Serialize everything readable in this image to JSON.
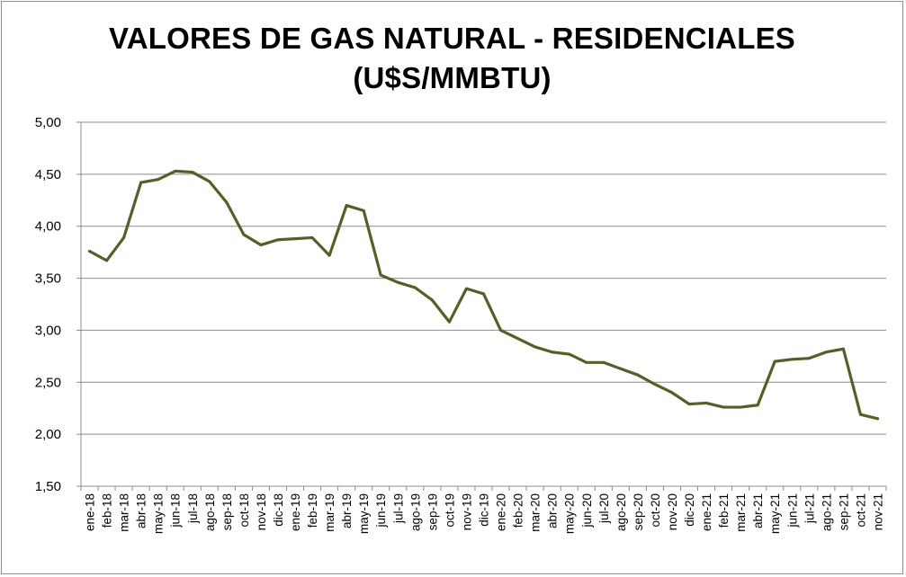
{
  "chart_data": {
    "type": "line",
    "title": "VALORES DE GAS NATURAL - RESIDENCIALES",
    "subtitle": "(U$S/MMBTU)",
    "xlabel": "",
    "ylabel": "",
    "ylim": [
      1.5,
      5.0
    ],
    "yticks": [
      "1,50",
      "2,00",
      "2,50",
      "3,00",
      "3,50",
      "4,00",
      "4,50",
      "5,00"
    ],
    "ytick_values": [
      1.5,
      2.0,
      2.5,
      3.0,
      3.5,
      4.0,
      4.5,
      5.0
    ],
    "grid": true,
    "line_color": "#4f6228",
    "categories": [
      "ene-18",
      "feb-18",
      "mar-18",
      "abr-18",
      "may-18",
      "jun-18",
      "jul-18",
      "ago-18",
      "sep-18",
      "oct-18",
      "nov-18",
      "dic-18",
      "ene-19",
      "feb-19",
      "mar-19",
      "abr-19",
      "may-19",
      "jun-19",
      "jul-19",
      "ago-19",
      "sep-19",
      "oct-19",
      "nov-19",
      "dic-19",
      "ene-20",
      "feb-20",
      "mar-20",
      "abr-20",
      "may-20",
      "jun-20",
      "jul-20",
      "ago-20",
      "sep-20",
      "oct-20",
      "nov-20",
      "dic-20",
      "ene-21",
      "feb-21",
      "mar-21",
      "abr-21",
      "may-21",
      "jun-21",
      "jul-21",
      "ago-21",
      "sep-21",
      "oct-21",
      "nov-21"
    ],
    "values": [
      3.76,
      3.67,
      3.89,
      4.42,
      4.45,
      4.53,
      4.52,
      4.43,
      4.23,
      3.92,
      3.82,
      3.87,
      3.88,
      3.89,
      3.72,
      4.2,
      4.15,
      3.53,
      3.46,
      3.41,
      3.29,
      3.08,
      3.4,
      3.35,
      3.0,
      2.92,
      2.84,
      2.79,
      2.77,
      2.69,
      2.69,
      2.63,
      2.57,
      2.48,
      2.4,
      2.29,
      2.3,
      2.26,
      2.26,
      2.28,
      2.7,
      2.72,
      2.73,
      2.79,
      2.82,
      2.19,
      2.15
    ]
  }
}
